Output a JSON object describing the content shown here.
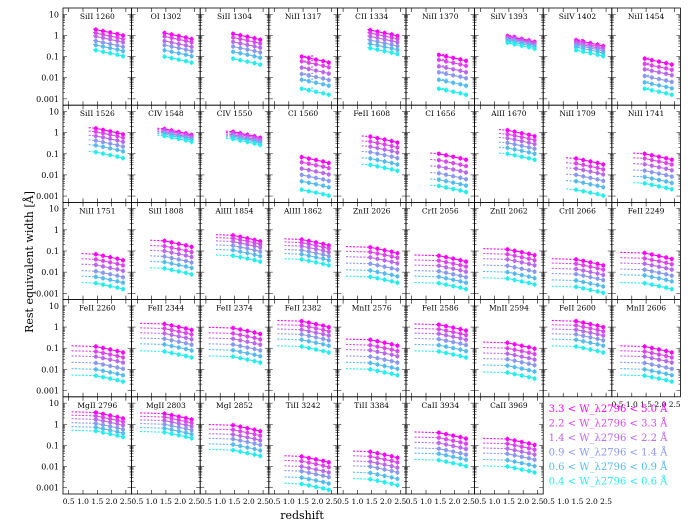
{
  "chart_data": {
    "type": "scatter",
    "layout": "panel grid, 9 columns x 5 rows, shared axes",
    "xlabel": "redshift",
    "ylabel": "Rest equivalent width [Å]",
    "xlim": [
      0.3,
      2.7
    ],
    "ylim_log10": [
      -3.3,
      1.3
    ],
    "yscale": "log",
    "x_ticks": [
      "0.5",
      "1.0",
      "1.5",
      "2.0",
      "2.5"
    ],
    "y_ticks": [
      "10",
      "1",
      "0.1",
      "0.01",
      "0.001"
    ],
    "x_tick_values": [
      0.5,
      1.0,
      1.5,
      2.0,
      2.5
    ],
    "y_tick_values": [
      10,
      1,
      0.1,
      0.01,
      0.001
    ],
    "grid": false,
    "legend_placement": "bottom-right",
    "series": [
      {
        "name": "3.3 < W_λ2796 < 5.0 Å",
        "color": "#ff00ff"
      },
      {
        "name": "2.2 < W_λ2796 < 3.3 Å",
        "color": "#dd44ee"
      },
      {
        "name": "1.4 < W_λ2796 < 2.2 Å",
        "color": "#bb66ee"
      },
      {
        "name": "0.9 < W_λ2796 < 1.4 Å",
        "color": "#8899ee"
      },
      {
        "name": "0.6 < W_λ2796 < 0.9 Å",
        "color": "#55bbee"
      },
      {
        "name": "0.4 < W_λ2796 < 0.6 Å",
        "color": "#22eeee"
      }
    ],
    "redshift_bins": [
      1.45,
      1.7,
      1.95,
      2.2,
      2.4
    ],
    "panels": [
      {
        "label": "SiII 1260",
        "start": 1.35,
        "values": [
          1.9,
          1.3,
          0.9,
          0.55,
          0.35,
          0.2
        ]
      },
      {
        "label": "OI 1302",
        "start": 1.45,
        "values": [
          1.3,
          0.9,
          0.55,
          0.35,
          0.2,
          0.1
        ]
      },
      {
        "label": "SiII 1304",
        "start": 1.45,
        "values": [
          1.2,
          0.8,
          0.5,
          0.3,
          0.17,
          0.08
        ]
      },
      {
        "label": "NiII 1317",
        "start": 1.85,
        "values": [
          0.1,
          0.06,
          0.03,
          0.015,
          0.008,
          0.003
        ]
      },
      {
        "label": "CII 1334",
        "start": 1.35,
        "values": [
          1.8,
          1.3,
          0.9,
          0.6,
          0.4,
          0.25
        ]
      },
      {
        "label": "NiII 1370",
        "start": 1.75,
        "values": [
          0.12,
          0.07,
          0.035,
          0.018,
          0.008,
          0.003
        ]
      },
      {
        "label": "SiIV 1393",
        "start": 1.7,
        "values": [
          0.95,
          0.85,
          0.75,
          0.65,
          0.55,
          0.45
        ]
      },
      {
        "label": "SiIV 1402",
        "start": 1.7,
        "values": [
          0.6,
          0.5,
          0.42,
          0.35,
          0.28,
          0.2
        ]
      },
      {
        "label": "NiII 1454",
        "start": 1.6,
        "values": [
          0.08,
          0.045,
          0.025,
          0.012,
          0.006,
          0.003
        ]
      },
      {
        "label": "SiII 1526",
        "start": 1.2,
        "values": [
          1.6,
          1.1,
          0.7,
          0.42,
          0.25,
          0.12
        ]
      },
      {
        "label": "CIV 1548",
        "start": 1.2,
        "values": [
          1.5,
          1.3,
          1.1,
          1.0,
          0.85,
          0.7
        ]
      },
      {
        "label": "CIV 1550",
        "start": 1.2,
        "values": [
          1.1,
          0.95,
          0.8,
          0.7,
          0.6,
          0.5
        ]
      },
      {
        "label": "CI 1560",
        "start": 1.5,
        "values": [
          0.07,
          0.04,
          0.02,
          0.01,
          0.005,
          0.002
        ]
      },
      {
        "label": "FeII 1608",
        "start": 1.15,
        "values": [
          0.65,
          0.38,
          0.22,
          0.12,
          0.06,
          0.03
        ]
      },
      {
        "label": "CI 1656",
        "start": 1.15,
        "values": [
          0.1,
          0.05,
          0.025,
          0.012,
          0.006,
          0.003
        ]
      },
      {
        "label": "AlII 1670",
        "start": 1.15,
        "values": [
          1.3,
          0.85,
          0.55,
          0.33,
          0.19,
          0.1
        ]
      },
      {
        "label": "NiII 1709",
        "start": 1.1,
        "values": [
          0.06,
          0.035,
          0.02,
          0.01,
          0.005,
          0.002
        ]
      },
      {
        "label": "NiII 1741",
        "start": 1.05,
        "values": [
          0.1,
          0.06,
          0.032,
          0.016,
          0.008,
          0.004
        ]
      },
      {
        "label": "NiII 1751",
        "start": 0.95,
        "values": [
          0.07,
          0.04,
          0.022,
          0.011,
          0.006,
          0.003
        ]
      },
      {
        "label": "SiII 1808",
        "start": 0.95,
        "values": [
          0.3,
          0.17,
          0.1,
          0.055,
          0.03,
          0.015
        ]
      },
      {
        "label": "AlIII 1854",
        "start": 0.85,
        "values": [
          0.55,
          0.4,
          0.28,
          0.18,
          0.11,
          0.06
        ]
      },
      {
        "label": "AlIII 1862",
        "start": 0.85,
        "values": [
          0.35,
          0.25,
          0.17,
          0.11,
          0.07,
          0.04
        ]
      },
      {
        "label": "ZnII 2026",
        "start": 0.6,
        "values": [
          0.15,
          0.09,
          0.05,
          0.025,
          0.012,
          0.006
        ]
      },
      {
        "label": "CrII 2056",
        "start": 0.6,
        "values": [
          0.06,
          0.035,
          0.02,
          0.011,
          0.006,
          0.003
        ]
      },
      {
        "label": "ZnII 2062",
        "start": 0.6,
        "values": [
          0.12,
          0.07,
          0.04,
          0.02,
          0.01,
          0.005
        ]
      },
      {
        "label": "CrII 2066",
        "start": 0.6,
        "values": [
          0.04,
          0.025,
          0.014,
          0.008,
          0.004,
          0.002
        ]
      },
      {
        "label": "FeII 2249",
        "start": 0.6,
        "values": [
          0.08,
          0.045,
          0.025,
          0.013,
          0.007,
          0.003
        ]
      },
      {
        "label": "FeII 2260",
        "start": 0.6,
        "values": [
          0.12,
          0.07,
          0.04,
          0.02,
          0.01,
          0.005
        ]
      },
      {
        "label": "FeII 2344",
        "start": 0.6,
        "values": [
          1.4,
          0.85,
          0.5,
          0.28,
          0.15,
          0.07
        ]
      },
      {
        "label": "FeII 2374",
        "start": 0.6,
        "values": [
          0.9,
          0.5,
          0.28,
          0.15,
          0.08,
          0.04
        ]
      },
      {
        "label": "FeII 2382",
        "start": 0.6,
        "values": [
          1.9,
          1.2,
          0.75,
          0.45,
          0.25,
          0.12
        ]
      },
      {
        "label": "MnII 2576",
        "start": 0.6,
        "values": [
          0.25,
          0.14,
          0.08,
          0.04,
          0.02,
          0.01
        ]
      },
      {
        "label": "FeII 2586",
        "start": 0.6,
        "values": [
          1.3,
          0.8,
          0.48,
          0.27,
          0.14,
          0.07
        ]
      },
      {
        "label": "MnII 2594",
        "start": 0.6,
        "values": [
          0.18,
          0.1,
          0.055,
          0.03,
          0.015,
          0.007
        ]
      },
      {
        "label": "FeII 2600",
        "start": 0.6,
        "values": [
          1.9,
          1.2,
          0.75,
          0.45,
          0.25,
          0.12
        ]
      },
      {
        "label": "MnII 2606",
        "start": 0.6,
        "values": [
          0.12,
          0.07,
          0.04,
          0.02,
          0.01,
          0.005
        ]
      },
      {
        "label": "MgII 2796",
        "start": 0.6,
        "values": [
          3.6,
          2.5,
          1.7,
          1.1,
          0.72,
          0.48
        ]
      },
      {
        "label": "MgII 2803",
        "start": 0.6,
        "values": [
          3.2,
          2.2,
          1.5,
          1.0,
          0.65,
          0.42
        ]
      },
      {
        "label": "MgI 2852",
        "start": 0.6,
        "values": [
          0.9,
          0.55,
          0.33,
          0.2,
          0.11,
          0.06
        ]
      },
      {
        "label": "TiII 3242",
        "start": 0.85,
        "values": [
          0.03,
          0.018,
          0.01,
          0.006,
          0.003,
          0.0015
        ]
      },
      {
        "label": "TiII 3384",
        "start": 0.85,
        "values": [
          0.05,
          0.03,
          0.017,
          0.01,
          0.005,
          0.0025
        ]
      },
      {
        "label": "CaII 3934",
        "start": 0.6,
        "values": [
          0.4,
          0.23,
          0.13,
          0.07,
          0.04,
          0.02
        ]
      },
      {
        "label": "CaII 3969",
        "start": 0.6,
        "values": [
          0.2,
          0.12,
          0.07,
          0.04,
          0.02,
          0.01
        ]
      }
    ]
  }
}
